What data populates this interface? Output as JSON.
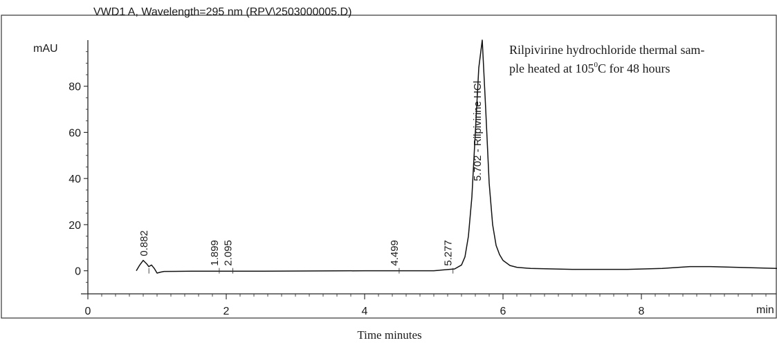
{
  "chart_data": {
    "type": "line",
    "title": "VWD1 A, Wavelength=295 nm (RPV\\2503000005.D)",
    "ylabel": "mAU",
    "xlabel_unit": "min",
    "xlabel": "Time minutes",
    "xlim": [
      0,
      10
    ],
    "ylim": [
      -10,
      100
    ],
    "xticks": [
      0,
      2,
      4,
      6,
      8
    ],
    "yticks": [
      0,
      20,
      40,
      60,
      80
    ],
    "annotation_lines": [
      "Rilpivirine hydrochloride thermal sam-",
      "ple heated at 105",
      "C for 48 hours"
    ],
    "annotation_superscript": "0",
    "peaks": [
      {
        "rt": 0.882,
        "label": "0.882",
        "height": 4.5
      },
      {
        "rt": 1.899,
        "label": "1.899",
        "height": 0.3
      },
      {
        "rt": 2.095,
        "label": "2.095",
        "height": 0.3
      },
      {
        "rt": 4.499,
        "label": "4.499",
        "height": 0.3
      },
      {
        "rt": 5.277,
        "label": "5.277",
        "height": 0.3
      },
      {
        "rt": 5.702,
        "label": "5.702 - Rilpivirine HCl",
        "height": 100
      }
    ],
    "series": [
      {
        "x": [
          0.7,
          0.75,
          0.8,
          0.85,
          0.88,
          0.92,
          0.96,
          1.0,
          1.05,
          1.1,
          1.5,
          2.5,
          4.0,
          5.0,
          5.3,
          5.4,
          5.45,
          5.5,
          5.55,
          5.6,
          5.65,
          5.7,
          5.75,
          5.8,
          5.85,
          5.9,
          5.95,
          6.0,
          6.1,
          6.2,
          6.4,
          7.0,
          7.8,
          8.3,
          8.7,
          9.0,
          9.5,
          10.0
        ],
        "y": [
          0,
          2.5,
          4.5,
          3.0,
          1.8,
          2.5,
          1.0,
          -1.0,
          -0.6,
          -0.3,
          -0.2,
          -0.2,
          0,
          0,
          0.8,
          2.5,
          6,
          15,
          32,
          60,
          88,
          100,
          70,
          38,
          20,
          11,
          7,
          4.5,
          2.3,
          1.5,
          1.0,
          0.6,
          0.6,
          1.0,
          1.8,
          1.8,
          1.4,
          1.0
        ]
      }
    ]
  }
}
